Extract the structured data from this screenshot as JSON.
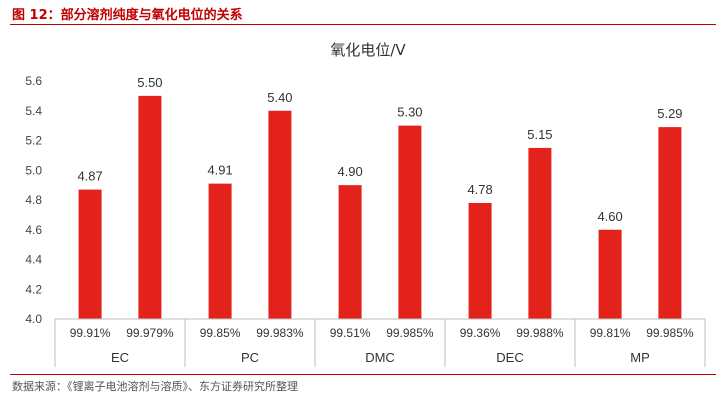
{
  "figure": {
    "title": "图 12：部分溶剂纯度与氧化电位的关系",
    "source": "数据来源：《锂离子电池溶剂与溶质》、东方证券研究所整理"
  },
  "colors": {
    "bar": "#e3231b",
    "accent": "#c00000",
    "axis": "#bfbfbf"
  },
  "chart_data": {
    "type": "bar",
    "title": "氧化电位/V",
    "xlabel": "",
    "ylabel": "",
    "ylim": [
      4.0,
      5.6
    ],
    "yticks": [
      "4.0",
      "4.2",
      "4.4",
      "4.6",
      "4.8",
      "5.0",
      "5.2",
      "5.4",
      "5.6"
    ],
    "grid": false,
    "groups": [
      {
        "name": "EC",
        "bars": [
          {
            "category": "99.91%",
            "value": 4.87,
            "label": "4.87"
          },
          {
            "category": "99.979%",
            "value": 5.5,
            "label": "5.50"
          }
        ]
      },
      {
        "name": "PC",
        "bars": [
          {
            "category": "99.85%",
            "value": 4.91,
            "label": "4.91"
          },
          {
            "category": "99.983%",
            "value": 5.4,
            "label": "5.40"
          }
        ]
      },
      {
        "name": "DMC",
        "bars": [
          {
            "category": "99.51%",
            "value": 4.9,
            "label": "4.90"
          },
          {
            "category": "99.985%",
            "value": 5.3,
            "label": "5.30"
          }
        ]
      },
      {
        "name": "DEC",
        "bars": [
          {
            "category": "99.36%",
            "value": 4.78,
            "label": "4.78"
          },
          {
            "category": "99.988%",
            "value": 5.15,
            "label": "5.15"
          }
        ]
      },
      {
        "name": "MP",
        "bars": [
          {
            "category": "99.81%",
            "value": 4.6,
            "label": "4.60"
          },
          {
            "category": "99.985%",
            "value": 5.29,
            "label": "5.29"
          }
        ]
      }
    ]
  }
}
